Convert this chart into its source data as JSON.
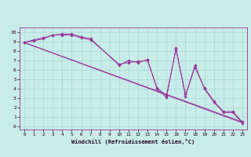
{
  "xlabel": "Windchill (Refroidissement éolien,°C)",
  "background_color": "#c8ece8",
  "grid_color": "#a8d8d4",
  "line_color": "#993399",
  "xlim": [
    -0.5,
    23.5
  ],
  "ylim": [
    -0.3,
    10.5
  ],
  "xticks": [
    0,
    1,
    2,
    3,
    4,
    5,
    6,
    7,
    8,
    9,
    10,
    11,
    12,
    13,
    14,
    15,
    16,
    17,
    18,
    19,
    20,
    21,
    22,
    23
  ],
  "yticks": [
    0,
    1,
    2,
    3,
    4,
    5,
    6,
    7,
    8,
    9,
    10
  ],
  "series": [
    {
      "x": [
        0,
        1,
        2,
        3,
        4,
        5,
        6,
        7,
        10,
        11,
        12,
        13,
        14,
        15,
        16,
        17,
        18,
        19,
        20,
        21,
        22,
        23
      ],
      "y": [
        8.9,
        9.2,
        9.4,
        9.7,
        9.8,
        9.8,
        9.5,
        9.3,
        6.5,
        7.0,
        6.8,
        7.1,
        4.0,
        3.1,
        8.3,
        3.2,
        6.5,
        4.0,
        2.6,
        1.5,
        1.5,
        0.4
      ],
      "has_markers": true
    },
    {
      "x": [
        0,
        1,
        2,
        3,
        4,
        5,
        6,
        7,
        10,
        11,
        12,
        13,
        14,
        15,
        16,
        17,
        18,
        19,
        20,
        21,
        22,
        23
      ],
      "y": [
        8.9,
        9.1,
        9.3,
        9.7,
        9.7,
        9.7,
        9.4,
        9.2,
        6.6,
        6.8,
        6.9,
        7.0,
        4.1,
        3.3,
        8.2,
        3.4,
        6.3,
        4.1,
        2.7,
        1.6,
        1.6,
        0.5
      ],
      "has_markers": true
    },
    {
      "x": [
        0,
        23
      ],
      "y": [
        8.9,
        0.4
      ],
      "has_markers": false
    },
    {
      "x": [
        0,
        23
      ],
      "y": [
        8.9,
        0.5
      ],
      "has_markers": false
    }
  ]
}
